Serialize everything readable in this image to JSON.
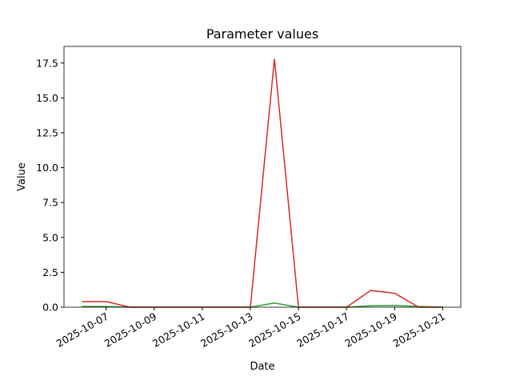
{
  "chart_data": {
    "type": "line",
    "title": "Parameter values",
    "x_label": "Date",
    "y_label": "Value",
    "x": [
      "2025-10-06",
      "2025-10-07",
      "2025-10-08",
      "2025-10-09",
      "2025-10-10",
      "2025-10-11",
      "2025-10-12",
      "2025-10-13",
      "2025-10-14",
      "2025-10-15",
      "2025-10-16",
      "2025-10-17",
      "2025-10-18",
      "2025-10-19",
      "2025-10-20",
      "2025-10-21"
    ],
    "series": [
      {
        "color": "#2ca02c",
        "values": [
          0.05,
          0.05,
          0,
          0,
          0,
          0,
          0,
          0,
          0.3,
          0,
          0,
          0,
          0.1,
          0.12,
          0.05,
          0
        ]
      },
      {
        "color": "#d62728",
        "values": [
          0.4,
          0.4,
          0,
          0,
          0,
          0,
          0,
          0,
          17.8,
          0,
          0,
          0,
          1.2,
          1.0,
          0,
          0
        ]
      }
    ],
    "xlim": [
      "2025-10-05T06:00:00Z",
      "2025-10-21T18:00:00Z"
    ],
    "xticks": [
      "2025-10-07",
      "2025-10-09",
      "2025-10-11",
      "2025-10-13",
      "2025-10-15",
      "2025-10-17",
      "2025-10-19",
      "2025-10-21"
    ],
    "ylim": [
      0,
      18.69
    ],
    "yticks": [
      {
        "value": 0,
        "label": "0.0"
      },
      2.5,
      {
        "value": 5,
        "label": "5.0"
      },
      7.5,
      {
        "value": 10,
        "label": "10.0"
      },
      12.5,
      {
        "value": 15,
        "label": "15.0"
      },
      17.5
    ]
  }
}
